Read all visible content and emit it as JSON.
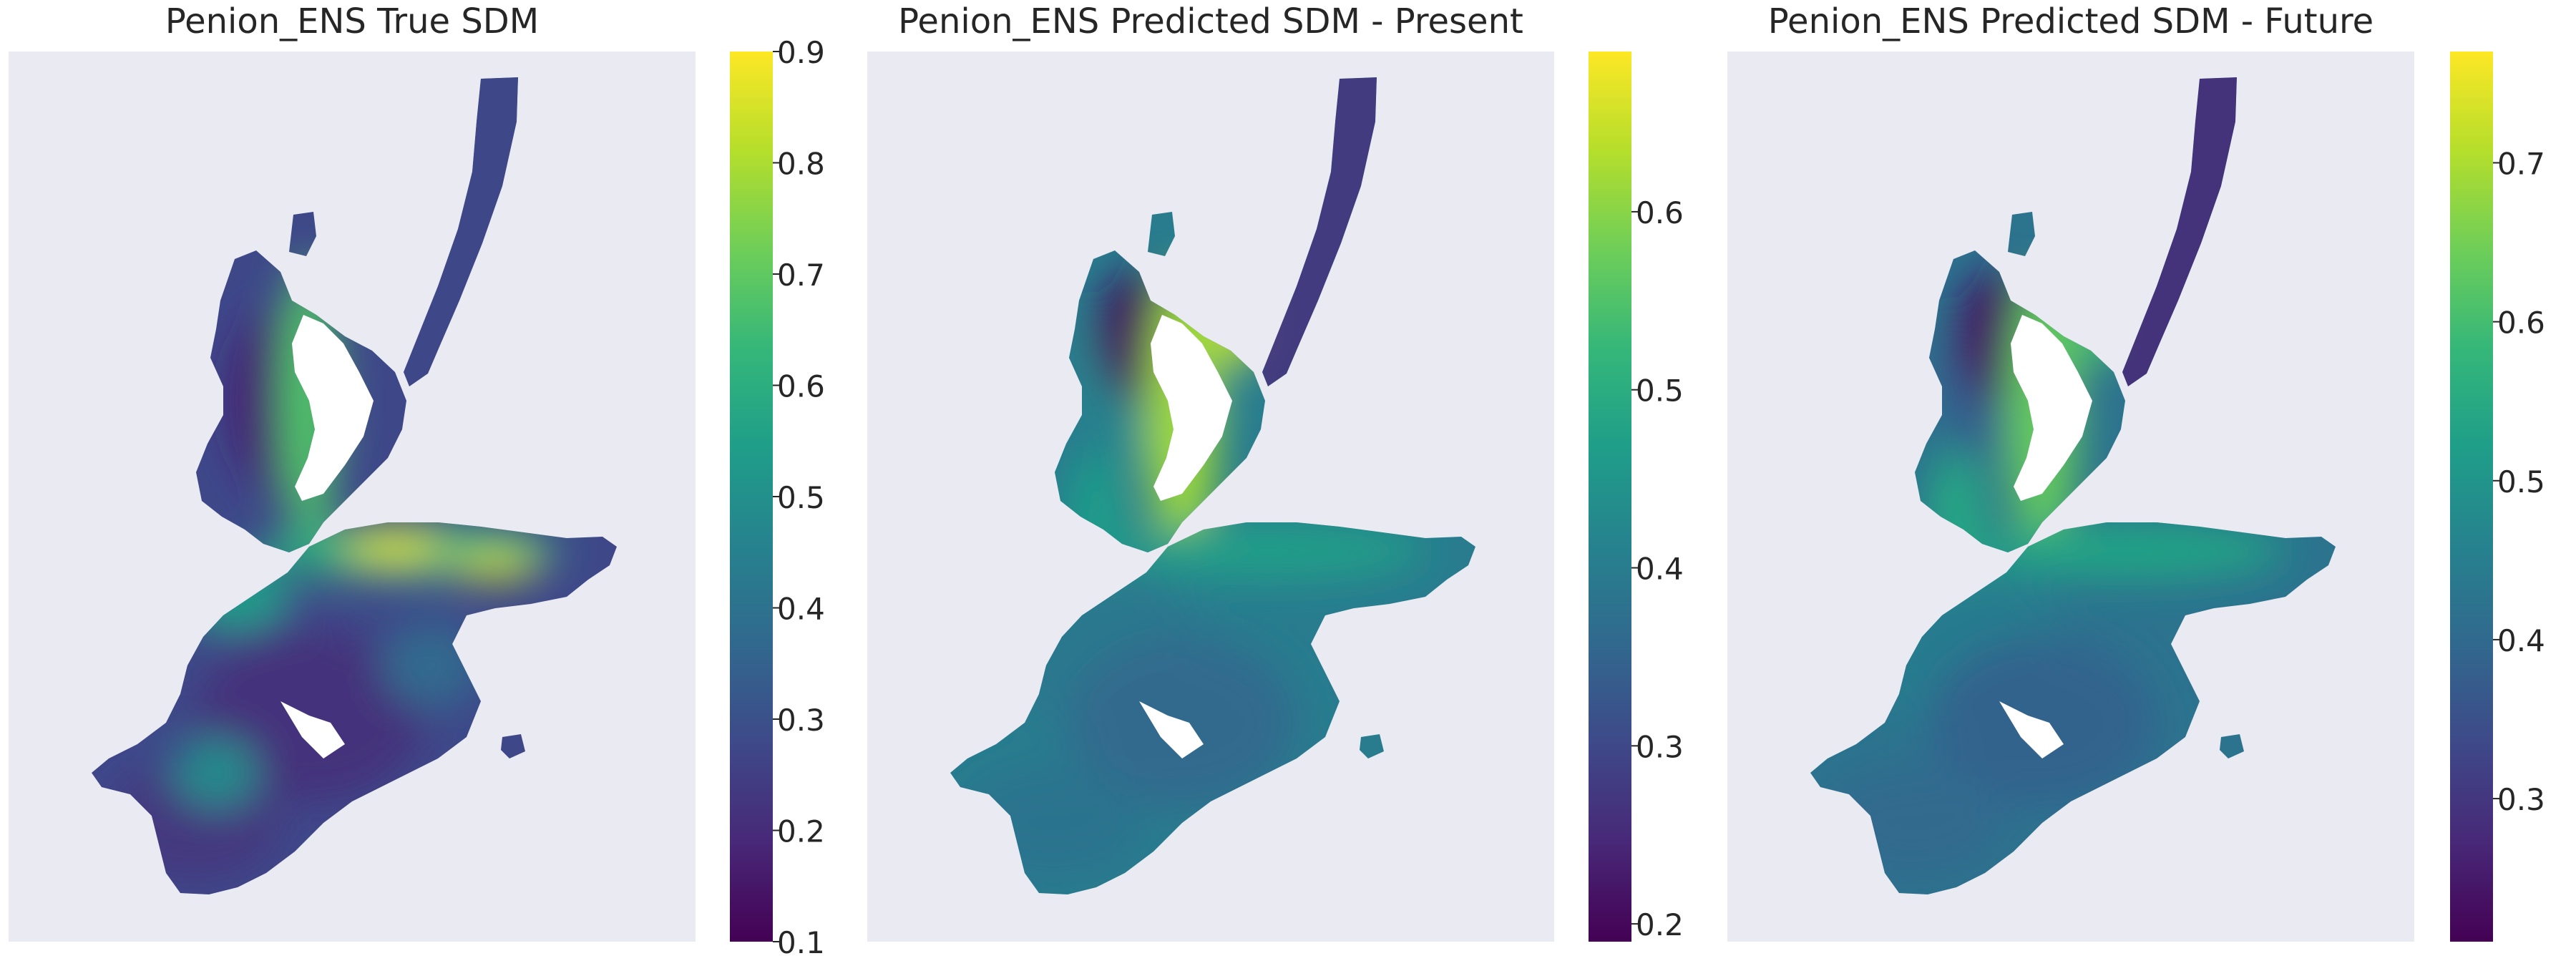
{
  "figure": {
    "panels": [
      {
        "title": "Penion_ENS True SDM"
      },
      {
        "title": "Penion_ENS Predicted SDM - Present"
      },
      {
        "title": "Penion_ENS Predicted SDM - Future"
      }
    ]
  },
  "colors": {
    "axes_background": "#eaeaf2",
    "colormap": "viridis",
    "viridis_stops": [
      "#440154",
      "#482878",
      "#3e4989",
      "#31688e",
      "#26828e",
      "#1f9e89",
      "#35b779",
      "#6ece58",
      "#b5de2b",
      "#fde725"
    ]
  },
  "chart_data": [
    {
      "type": "heatmap",
      "title": "Penion_ENS True SDM",
      "colormap": "viridis",
      "colorbar_range": [
        0.1,
        0.9
      ],
      "colorbar_ticks": [
        "0.1",
        "0.2",
        "0.3",
        "0.4",
        "0.5",
        "0.6",
        "0.7",
        "0.8",
        "0.9"
      ],
      "xlabel": "",
      "ylabel": "",
      "grid": false
    },
    {
      "type": "heatmap",
      "title": "Penion_ENS Predicted SDM - Present",
      "colormap": "viridis",
      "colorbar_range": [
        0.19,
        0.69
      ],
      "colorbar_ticks": [
        "0.2",
        "0.3",
        "0.4",
        "0.5",
        "0.6"
      ],
      "xlabel": "",
      "ylabel": "",
      "grid": false
    },
    {
      "type": "heatmap",
      "title": "Penion_ENS Predicted SDM - Future",
      "colormap": "viridis",
      "colorbar_range": [
        0.21,
        0.77
      ],
      "colorbar_ticks": [
        "0.3",
        "0.4",
        "0.5",
        "0.6",
        "0.7"
      ],
      "xlabel": "",
      "ylabel": "",
      "grid": false
    }
  ]
}
